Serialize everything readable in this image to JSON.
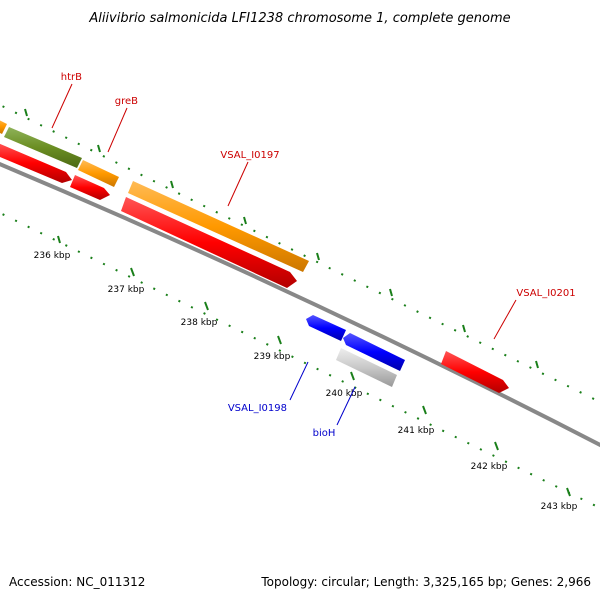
{
  "title": "Aliivibrio salmonicida LFI1238 chromosome 1, complete genome",
  "accession": "Accession: NC_011312",
  "topology": "Topology: circular; Length: 3,325,165 bp; Genes: 2,966",
  "colors": {
    "forward_gene": "#ff0000",
    "reverse_gene": "#0000ff",
    "orange_feature": "#ff9900",
    "green_feature": "#6b8e23",
    "grey_feature": "#bbbbbb",
    "backbone": "#888888",
    "ticks": "#1a7f1a",
    "forward_label": "#cc0000",
    "reverse_label": "#0000cc"
  },
  "scale_labels": [
    "236 kbp",
    "237 kbp",
    "238 kbp",
    "239 kbp",
    "240 kbp",
    "241 kbp",
    "242 kbp",
    "243 kbp"
  ],
  "gene_labels": {
    "htrB": "htrB",
    "greB": "greB",
    "VSAL_I0197": "VSAL_I0197",
    "VSAL_I0201": "VSAL_I0201",
    "VSAL_I0198": "VSAL_I0198",
    "bioH": "bioH"
  }
}
